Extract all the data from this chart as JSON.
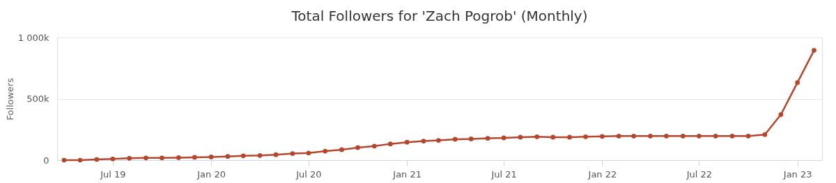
{
  "chart_data": {
    "type": "line",
    "title": "Total Followers for 'Zach Pogrob' (Monthly)",
    "ylabel": "Followers",
    "x": [
      "2019-04",
      "2019-05",
      "2019-06",
      "2019-07",
      "2019-08",
      "2019-09",
      "2019-10",
      "2019-11",
      "2019-12",
      "2020-01",
      "2020-02",
      "2020-03",
      "2020-04",
      "2020-05",
      "2020-06",
      "2020-07",
      "2020-08",
      "2020-09",
      "2020-10",
      "2020-11",
      "2020-12",
      "2021-01",
      "2021-02",
      "2021-03",
      "2021-04",
      "2021-05",
      "2021-06",
      "2021-07",
      "2021-08",
      "2021-09",
      "2021-10",
      "2021-11",
      "2021-12",
      "2022-01",
      "2022-02",
      "2022-03",
      "2022-04",
      "2022-05",
      "2022-06",
      "2022-07",
      "2022-08",
      "2022-09",
      "2022-10",
      "2022-11",
      "2022-12",
      "2023-01",
      "2023-02"
    ],
    "series": [
      {
        "color": "#b5462c",
        "values": [
          0,
          0,
          5000,
          10000,
          15000,
          18000,
          18000,
          20000,
          23000,
          26000,
          30000,
          35000,
          38000,
          44000,
          53000,
          58000,
          73000,
          85000,
          102000,
          114000,
          132000,
          146000,
          155000,
          161000,
          170000,
          173000,
          178000,
          181000,
          187000,
          190000,
          187000,
          187000,
          190000,
          193000,
          196000,
          196000,
          196000,
          196000,
          196000,
          196000,
          196000,
          196000,
          196000,
          208000,
          371000,
          632000,
          895000
        ]
      }
    ],
    "xlim": [
      "2019-03-19",
      "2023-02-16"
    ],
    "xticks": [
      {
        "value": "2019-07-01",
        "label": "Jul 19"
      },
      {
        "value": "2020-01-01",
        "label": "Jan 20"
      },
      {
        "value": "2020-07-01",
        "label": "Jul 20"
      },
      {
        "value": "2021-01-01",
        "label": "Jan 21"
      },
      {
        "value": "2021-07-01",
        "label": "Jul 21"
      },
      {
        "value": "2022-01-01",
        "label": "Jan 22"
      },
      {
        "value": "2022-07-01",
        "label": "Jul 22"
      },
      {
        "value": "2023-01-01",
        "label": "Jan 23"
      }
    ],
    "ylim": [
      0,
      1000000
    ],
    "yticks": [
      {
        "value": 0,
        "label": "0"
      },
      {
        "value": 500000,
        "label": "500k"
      },
      {
        "value": 1000000,
        "label": "1 000k"
      }
    ],
    "grid": "y",
    "legend": false,
    "marker": "circle",
    "line_style": "solid"
  }
}
